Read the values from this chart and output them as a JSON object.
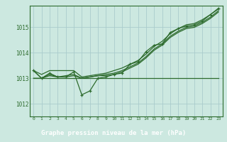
{
  "title": "Graphe pression niveau de la mer (hPa)",
  "background_color": "#cce8e0",
  "footer_color": "#2d6b2d",
  "grid_color": "#aacccc",
  "line_color": "#2d6b2d",
  "x_ticks": [
    0,
    1,
    2,
    3,
    4,
    5,
    6,
    7,
    8,
    9,
    10,
    11,
    12,
    13,
    14,
    15,
    16,
    17,
    18,
    19,
    20,
    21,
    22,
    23
  ],
  "ylim": [
    1011.5,
    1015.85
  ],
  "yticks": [
    1012,
    1013,
    1014,
    1015
  ],
  "series_zigzag": [
    1013.3,
    1013.0,
    1013.2,
    1013.05,
    1013.05,
    1013.25,
    1012.35,
    1012.5,
    1013.0,
    1013.05,
    1013.15,
    1013.2,
    1013.55,
    1013.65,
    1014.05,
    1014.3,
    1014.35,
    1014.8,
    1014.95,
    1015.05,
    1015.1,
    1015.25,
    1015.5,
    1015.75
  ],
  "series_flat": [
    1013.0,
    1013.0,
    1013.0,
    1013.0,
    1013.0,
    1013.0,
    1013.0,
    1013.0,
    1013.0,
    1013.0,
    1013.0,
    1013.0,
    1013.0,
    1013.0,
    1013.0,
    1013.0,
    1013.0,
    1013.0,
    1013.0,
    1013.0,
    1013.0,
    1013.0,
    1013.0,
    1013.0
  ],
  "series_diag1": [
    1013.3,
    1013.15,
    1013.3,
    1013.3,
    1013.3,
    1013.3,
    1013.05,
    1013.1,
    1013.15,
    1013.2,
    1013.3,
    1013.4,
    1013.55,
    1013.7,
    1013.95,
    1014.25,
    1014.45,
    1014.75,
    1014.95,
    1015.1,
    1015.15,
    1015.3,
    1015.5,
    1015.72
  ],
  "series_diag2": [
    1013.3,
    1013.0,
    1013.15,
    1013.05,
    1013.1,
    1013.15,
    1013.0,
    1013.05,
    1013.1,
    1013.15,
    1013.2,
    1013.3,
    1013.45,
    1013.6,
    1013.85,
    1014.15,
    1014.35,
    1014.65,
    1014.85,
    1015.0,
    1015.05,
    1015.2,
    1015.4,
    1015.65
  ],
  "series_diag3": [
    1013.0,
    1013.0,
    1013.1,
    1013.05,
    1013.05,
    1013.1,
    1013.0,
    1013.05,
    1013.1,
    1013.1,
    1013.15,
    1013.25,
    1013.4,
    1013.55,
    1013.8,
    1014.1,
    1014.3,
    1014.6,
    1014.8,
    1014.95,
    1015.0,
    1015.15,
    1015.35,
    1015.6
  ]
}
